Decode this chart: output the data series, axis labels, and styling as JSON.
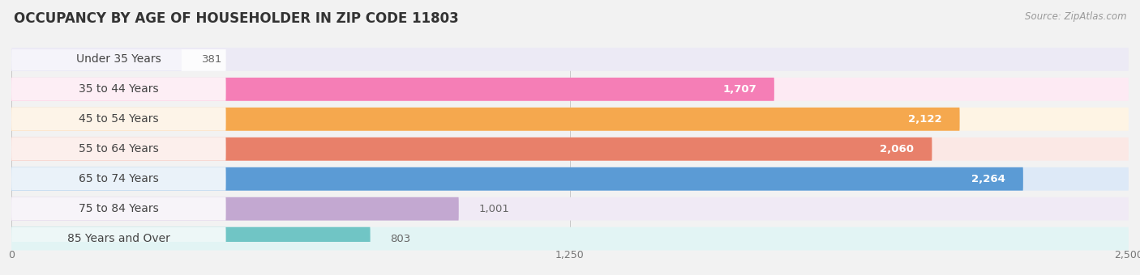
{
  "title": "OCCUPANCY BY AGE OF HOUSEHOLDER IN ZIP CODE 11803",
  "source": "Source: ZipAtlas.com",
  "categories": [
    "Under 35 Years",
    "35 to 44 Years",
    "45 to 54 Years",
    "55 to 64 Years",
    "65 to 74 Years",
    "75 to 84 Years",
    "85 Years and Over"
  ],
  "values": [
    381,
    1707,
    2122,
    2060,
    2264,
    1001,
    803
  ],
  "bar_colors": [
    "#b0aedd",
    "#f57eb6",
    "#f5a84e",
    "#e8806a",
    "#5b9bd5",
    "#c3a8d1",
    "#70c5c5"
  ],
  "bar_bg_colors": [
    "#eceaf5",
    "#fdeaf3",
    "#fef4e4",
    "#fbe8e5",
    "#dde9f7",
    "#f0eaf5",
    "#e2f4f4"
  ],
  "xlim": [
    0,
    2500
  ],
  "xticks": [
    0,
    1250,
    2500
  ],
  "background_color": "#f2f2f2",
  "title_fontsize": 12,
  "label_fontsize": 10,
  "value_fontsize": 9.5,
  "source_fontsize": 8.5
}
